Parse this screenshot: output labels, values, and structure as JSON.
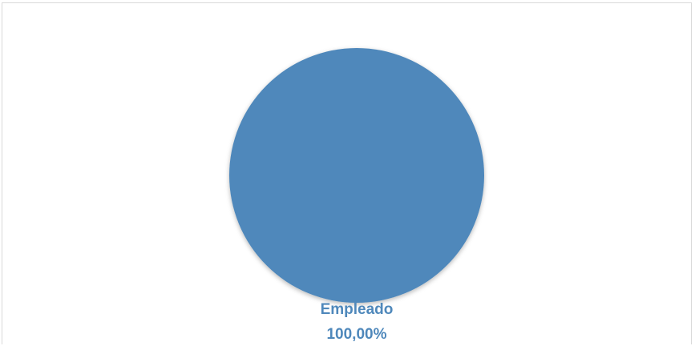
{
  "chart_data": {
    "type": "pie",
    "categories": [
      "Empleado"
    ],
    "values": [
      100
    ],
    "data_labels": [
      {
        "category": "Empleado",
        "percent": "100,00%"
      }
    ],
    "colors": [
      "#4f88bb"
    ],
    "label_color": "#4f88bb",
    "title": "",
    "legend": false
  }
}
